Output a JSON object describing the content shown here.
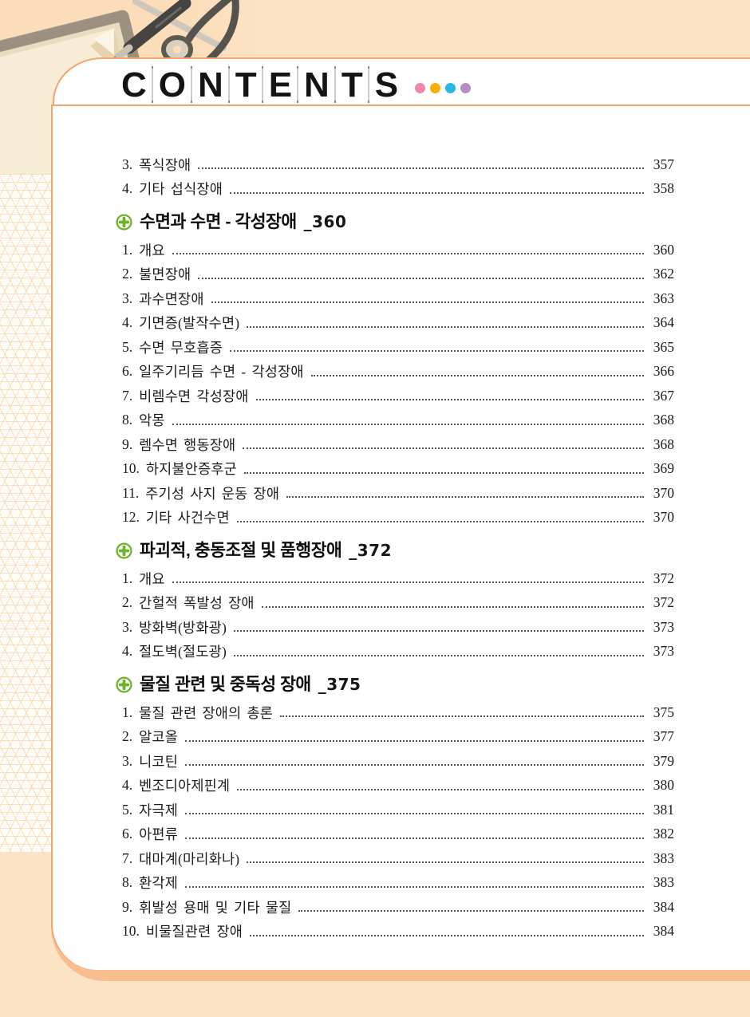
{
  "header": {
    "title": "CONTENTS",
    "letters": [
      "C",
      "O",
      "N",
      "T",
      "E",
      "N",
      "T",
      "S"
    ],
    "dot_colors": [
      "#ee86ae",
      "#f8ae00",
      "#29b7e8",
      "#b48cc8"
    ]
  },
  "decor": {
    "photo_alt": "clipboard with pen and stethoscope",
    "accent_border": "#f2a56d",
    "accent_band": "#f9be8f",
    "section_icon_color": "#6db32b"
  },
  "toc": {
    "sections": [
      {
        "header": null,
        "entries": [
          {
            "no": "3.",
            "title": "폭식장애",
            "page": "357"
          },
          {
            "no": "4.",
            "title": "기타 섭식장애",
            "page": "358"
          }
        ]
      },
      {
        "header": {
          "title": "수면과 수면 - 각성장애",
          "ref": "_360"
        },
        "entries": [
          {
            "no": "1.",
            "title": "개요",
            "page": "360"
          },
          {
            "no": "2.",
            "title": "불면장애",
            "page": "362"
          },
          {
            "no": "3.",
            "title": "과수면장애",
            "page": "363"
          },
          {
            "no": "4.",
            "title": "기면증(발작수면)",
            "page": "364"
          },
          {
            "no": "5.",
            "title": "수면 무호흡증",
            "page": "365"
          },
          {
            "no": "6.",
            "title": "일주기리듬 수면 - 각성장애",
            "page": "366"
          },
          {
            "no": "7.",
            "title": "비렘수면 각성장애",
            "page": "367"
          },
          {
            "no": "8.",
            "title": "악몽",
            "page": "368"
          },
          {
            "no": "9.",
            "title": "렘수면 행동장애",
            "page": "368"
          },
          {
            "no": "10.",
            "title": "하지불안증후군",
            "page": "369"
          },
          {
            "no": "11.",
            "title": "주기성 사지 운동 장애",
            "page": "370"
          },
          {
            "no": "12.",
            "title": "기타 사건수면",
            "page": "370"
          }
        ]
      },
      {
        "header": {
          "title": "파괴적, 충동조절 및 품행장애",
          "ref": "_372"
        },
        "entries": [
          {
            "no": "1.",
            "title": "개요",
            "page": "372"
          },
          {
            "no": "2.",
            "title": "간헐적 폭발성 장애",
            "page": "372"
          },
          {
            "no": "3.",
            "title": "방화벽(방화광)",
            "page": "373"
          },
          {
            "no": "4.",
            "title": "절도벽(절도광)",
            "page": "373"
          }
        ]
      },
      {
        "header": {
          "title": "물질 관련 및 중독성 장애",
          "ref": "_375"
        },
        "entries": [
          {
            "no": "1.",
            "title": "물질 관련 장애의 총론",
            "page": "375"
          },
          {
            "no": "2.",
            "title": "알코올",
            "page": "377"
          },
          {
            "no": "3.",
            "title": "니코틴",
            "page": "379"
          },
          {
            "no": "4.",
            "title": "벤조디아제핀계",
            "page": "380"
          },
          {
            "no": "5.",
            "title": "자극제",
            "page": "381"
          },
          {
            "no": "6.",
            "title": "아편류",
            "page": "382"
          },
          {
            "no": "7.",
            "title": "대마계(마리화나)",
            "page": "383"
          },
          {
            "no": "8.",
            "title": "환각제",
            "page": "383"
          },
          {
            "no": "9.",
            "title": "휘발성 용매 및 기타 물질",
            "page": "384"
          },
          {
            "no": "10.",
            "title": "비물질관련 장애",
            "page": "384"
          }
        ]
      }
    ]
  }
}
